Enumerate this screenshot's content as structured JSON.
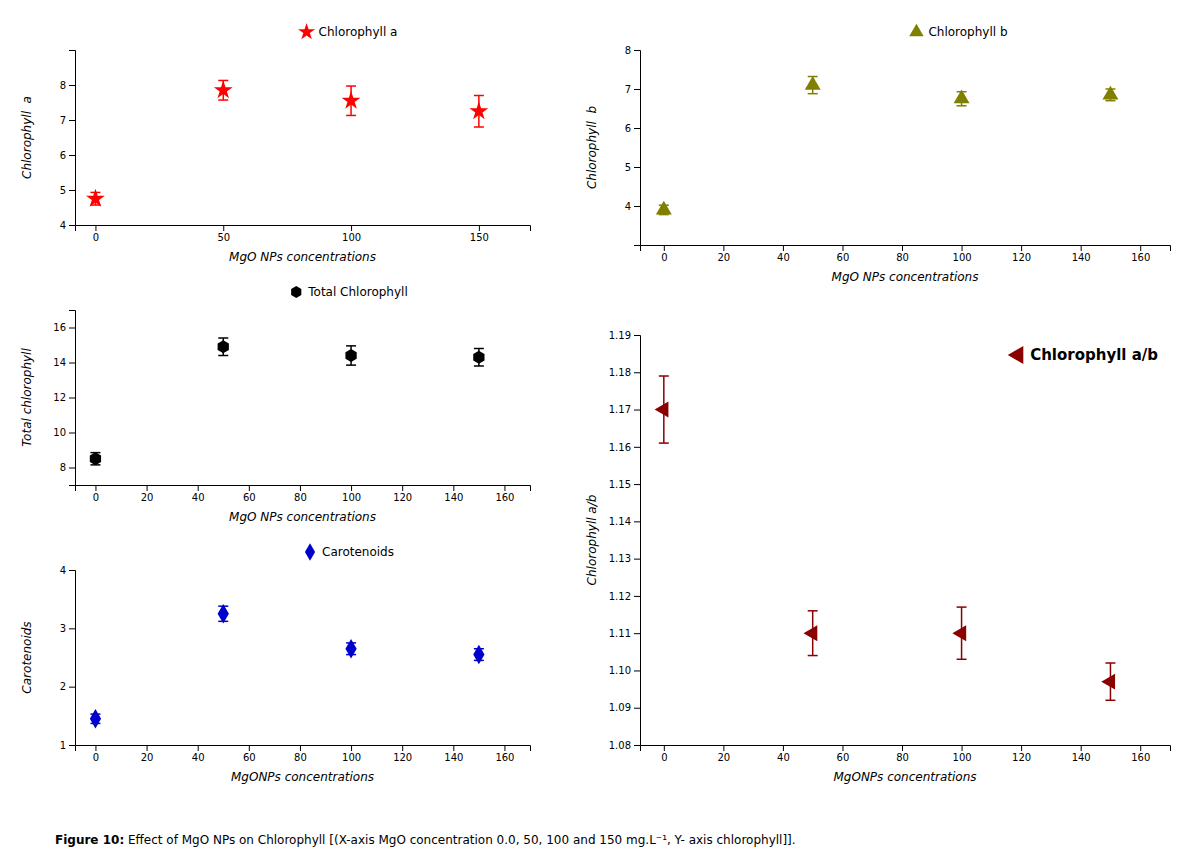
{
  "chart_data": [
    {
      "type": "scatter",
      "x": [
        0,
        50,
        100,
        150
      ],
      "series": [
        {
          "name": "Chlorophyll a",
          "color": "#FF0000",
          "marker": "star",
          "values": [
            4.75,
            7.85,
            7.55,
            7.25
          ],
          "yerr": [
            0.18,
            0.28,
            0.42,
            0.45
          ]
        }
      ],
      "xlabel": "MgO NPs concentrations",
      "ylabel": "Chlorophyll  a",
      "xlim": [
        -8,
        170
      ],
      "ylim": [
        4,
        9
      ],
      "xticks": [
        0,
        50,
        100,
        150
      ],
      "yticks": [
        4,
        5,
        6,
        7,
        8
      ],
      "legend": "top",
      "grid": false
    },
    {
      "type": "scatter",
      "x": [
        0,
        50,
        100,
        150
      ],
      "series": [
        {
          "name": "Chlorophyll b",
          "color": "#808000",
          "marker": "triangle-up",
          "values": [
            3.9,
            7.1,
            6.75,
            6.85
          ],
          "yerr": [
            0.12,
            0.22,
            0.18,
            0.15
          ]
        }
      ],
      "xlabel": "MgO NPs concentrations",
      "ylabel": "Chlorophyll  b",
      "xlim": [
        -8,
        170
      ],
      "ylim": [
        3,
        8
      ],
      "xticks": [
        0,
        20,
        40,
        60,
        80,
        100,
        120,
        140,
        160
      ],
      "yticks": [
        4,
        5,
        6,
        7,
        8
      ],
      "legend": "top",
      "grid": false
    },
    {
      "type": "scatter",
      "x": [
        0,
        50,
        100,
        150
      ],
      "series": [
        {
          "name": "Total Chlorophyll",
          "color": "#000000",
          "marker": "hexagon",
          "values": [
            8.5,
            14.9,
            14.4,
            14.3
          ],
          "yerr": [
            0.35,
            0.5,
            0.55,
            0.5
          ]
        }
      ],
      "xlabel": "MgO NPs concentrations",
      "ylabel": "Total chlorophyll",
      "xlim": [
        -8,
        170
      ],
      "ylim": [
        7,
        17
      ],
      "xticks": [
        0,
        20,
        40,
        60,
        80,
        100,
        120,
        140,
        160
      ],
      "yticks": [
        8,
        10,
        12,
        14,
        16
      ],
      "legend": "top",
      "grid": false
    },
    {
      "type": "scatter",
      "x": [
        0,
        50,
        100,
        150
      ],
      "series": [
        {
          "name": "Chlorophyll a/b",
          "color": "#8B0000",
          "marker": "triangle-left",
          "values": [
            1.17,
            1.11,
            1.11,
            1.097
          ],
          "yerr": [
            0.009,
            0.006,
            0.007,
            0.005
          ]
        }
      ],
      "xlabel": "MgONPs concentrations",
      "ylabel": "Chlorophyll a/b",
      "xlim": [
        -8,
        170
      ],
      "ylim": [
        1.08,
        1.19
      ],
      "xticks": [
        0,
        20,
        40,
        60,
        80,
        100,
        120,
        140,
        160
      ],
      "yticks": [
        1.08,
        1.09,
        {
          "value": 1.1,
          "label": "1.10"
        },
        1.11,
        1.12,
        1.13,
        1.14,
        1.15,
        1.16,
        1.17,
        1.18,
        1.19
      ],
      "legend": "upper right",
      "grid": false
    },
    {
      "type": "scatter",
      "x": [
        0,
        50,
        100,
        150
      ],
      "series": [
        {
          "name": "Carotenoids",
          "color": "#0000CD",
          "marker": "diamond",
          "values": [
            1.45,
            3.25,
            2.65,
            2.55
          ],
          "yerr": [
            0.08,
            0.13,
            0.1,
            0.1
          ]
        }
      ],
      "xlabel": "MgONPs concentrations",
      "ylabel": "Carotenoids",
      "xlim": [
        -8,
        170
      ],
      "ylim": [
        1,
        4
      ],
      "xticks": [
        0,
        20,
        40,
        60,
        80,
        100,
        120,
        140,
        160
      ],
      "yticks": [
        1,
        2,
        3,
        4
      ],
      "legend": "top",
      "grid": false
    }
  ],
  "caption": [
    "Figure 10:",
    " Effect of MgO NPs on Chlorophyll [(X-axis MgO concentration 0.0, 50, 100 and 150 mg.L⁻¹, Y- axis chlorophyll]]."
  ]
}
